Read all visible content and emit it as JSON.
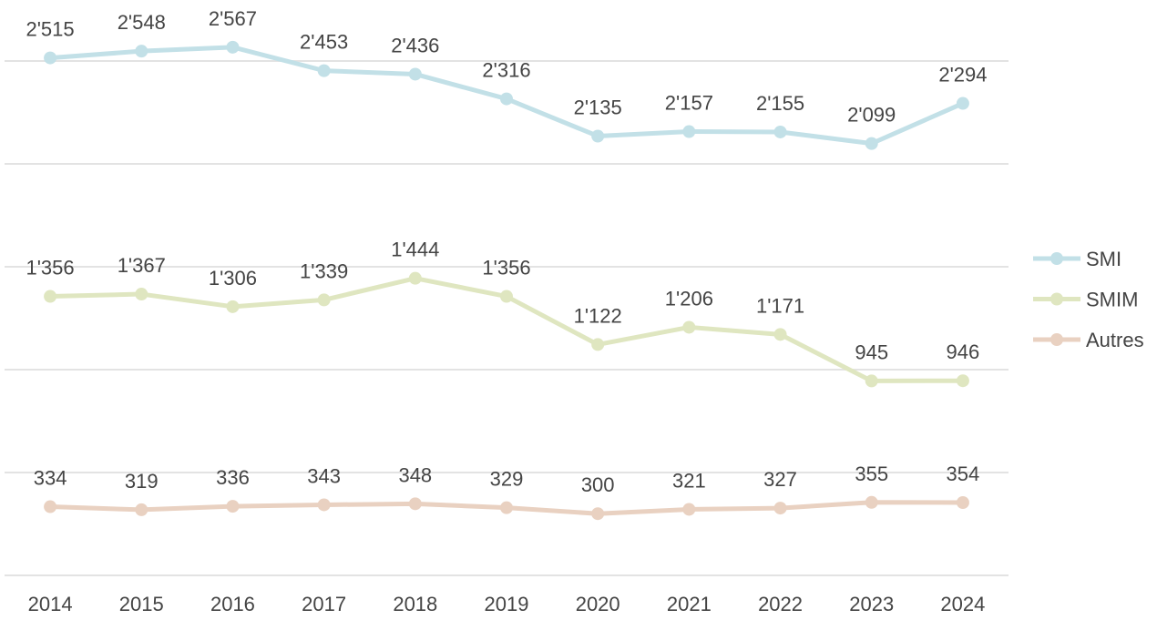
{
  "chart_data": {
    "type": "line",
    "categories": [
      "2014",
      "2015",
      "2016",
      "2017",
      "2018",
      "2019",
      "2020",
      "2021",
      "2022",
      "2023",
      "2024"
    ],
    "series": [
      {
        "name": "SMI",
        "color": "#c2e0e7",
        "values": [
          2515,
          2548,
          2567,
          2453,
          2436,
          2316,
          2135,
          2157,
          2155,
          2099,
          2294
        ],
        "value_labels": [
          "2'515",
          "2'548",
          "2'567",
          "2'453",
          "2'436",
          "2'316",
          "2'135",
          "2'157",
          "2'155",
          "2'099",
          "2'294"
        ]
      },
      {
        "name": "SMIM",
        "color": "#dfe6c0",
        "values": [
          1356,
          1367,
          1306,
          1339,
          1444,
          1356,
          1122,
          1206,
          1171,
          945,
          946
        ],
        "value_labels": [
          "1'356",
          "1'367",
          "1'306",
          "1'339",
          "1'444",
          "1'356",
          "1'122",
          "1'206",
          "1'171",
          "945",
          "946"
        ]
      },
      {
        "name": "Autres",
        "color": "#e9d1c1",
        "values": [
          334,
          319,
          336,
          343,
          348,
          329,
          300,
          321,
          327,
          355,
          354
        ]
      }
    ],
    "ylim": [
      0,
      2500
    ],
    "yticks": [
      0,
      500,
      1000,
      1500,
      2000,
      2500
    ],
    "grid": true,
    "legend": "right"
  }
}
